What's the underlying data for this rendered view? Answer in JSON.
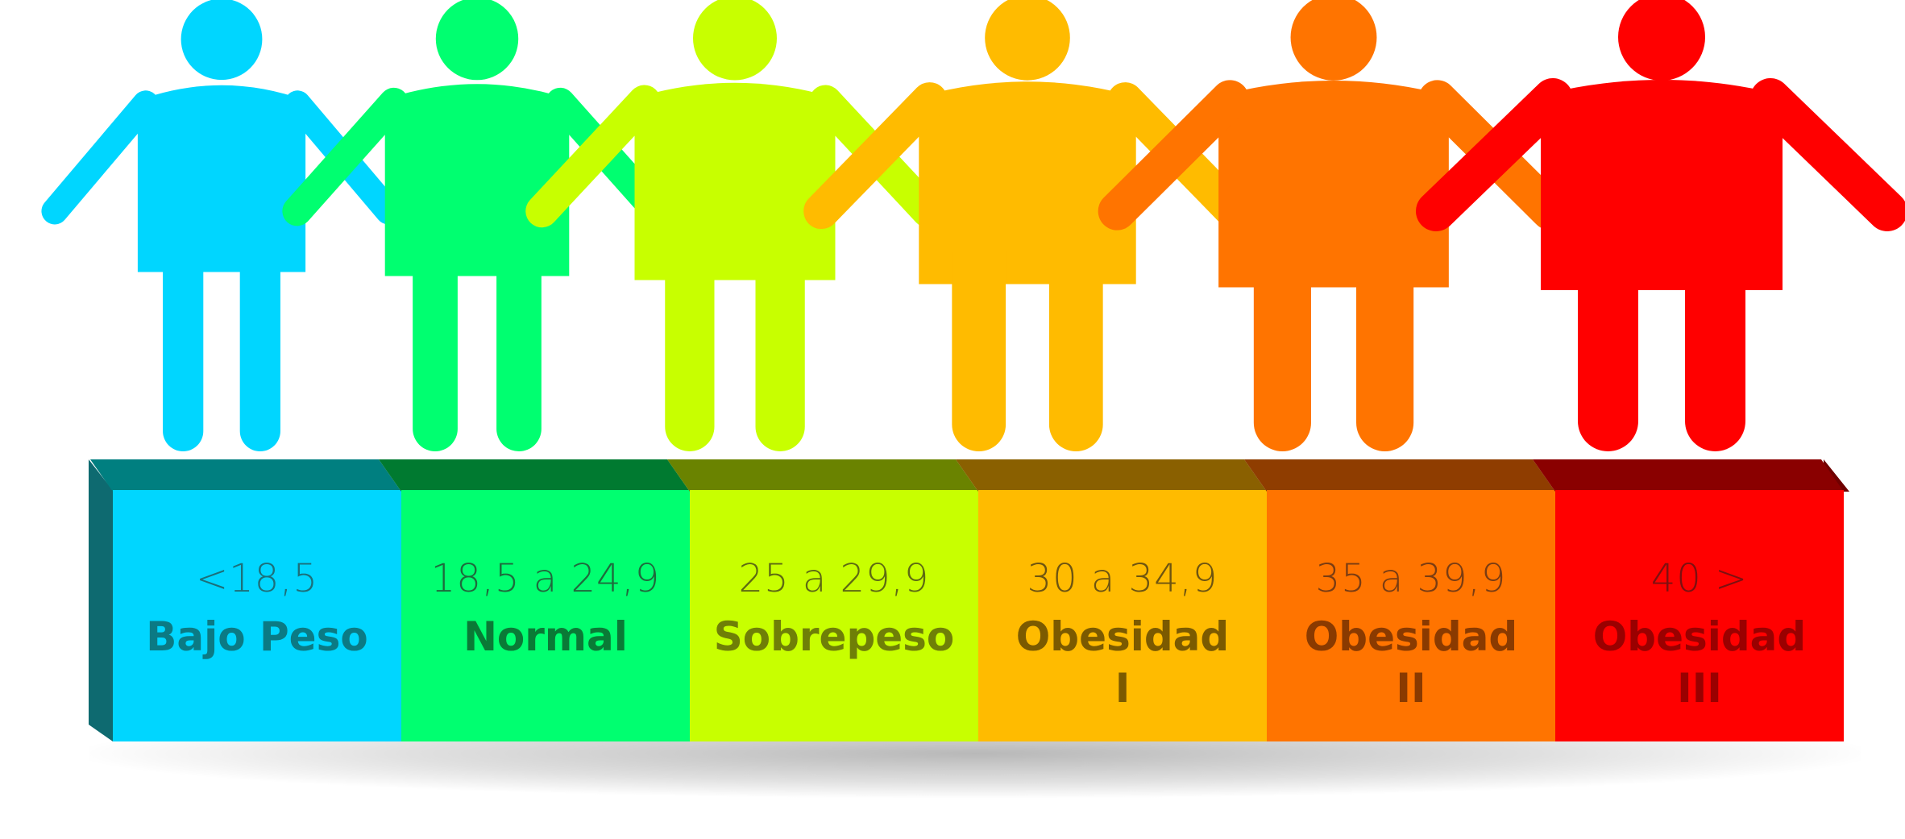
{
  "categories": [
    {
      "range": "<18,5",
      "label": "Bajo Peso",
      "color": "#00d6ff",
      "top_color": "#007f80",
      "text_color": "#0b7a84",
      "range_color": "#1c6f7a"
    },
    {
      "range": "18,5 a 24,9",
      "label": "Normal",
      "color": "#00ff70",
      "top_color": "#007a30",
      "text_color": "#0a7a36",
      "range_color": "#1e6a3c"
    },
    {
      "range": "25 a 29,9",
      "label": "Sobrepeso",
      "color": "#c8ff00",
      "top_color": "#6a8300",
      "text_color": "#6f7f07",
      "range_color": "#5d6a12"
    },
    {
      "range": "30 a 34,9",
      "label": "Obesidad I",
      "color": "#ffbb00",
      "top_color": "#8a6000",
      "text_color": "#7b5a00",
      "range_color": "#6e5410"
    },
    {
      "range": "35 a 39,9",
      "label": "Obesidad II",
      "color": "#ff7400",
      "top_color": "#8f3d00",
      "text_color": "#8a3a00",
      "range_color": "#7a3c12"
    },
    {
      "range": "40 >",
      "label": "Obesidad III",
      "color": "#ff0000",
      "top_color": "#8a0000",
      "text_color": "#9a0000",
      "range_color": "#7c1010"
    }
  ],
  "figures": [
    {
      "name": "bajo-peso",
      "body_scale": 0.55
    },
    {
      "name": "normal",
      "body_scale": 0.65
    },
    {
      "name": "sobrepeso",
      "body_scale": 0.75
    },
    {
      "name": "obesidad-i",
      "body_scale": 0.85
    },
    {
      "name": "obesidad-ii",
      "body_scale": 0.93
    },
    {
      "name": "obesidad-iii",
      "body_scale": 1.0
    }
  ],
  "colors": {
    "side_dark": "#0e6a70",
    "side_right": "#6f0000"
  }
}
